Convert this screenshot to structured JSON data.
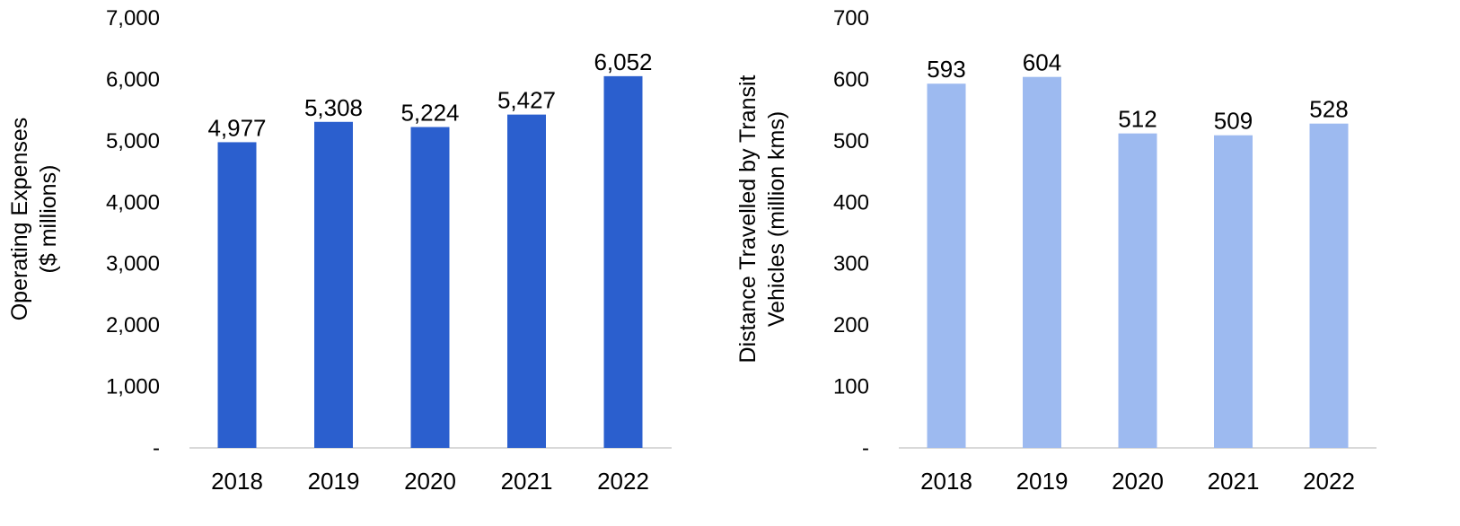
{
  "chart_data": [
    {
      "type": "bar",
      "title": "",
      "xlabel": "",
      "ylabel_lines": [
        "Operating Expenses",
        "($ millions)"
      ],
      "categories": [
        "2018",
        "2019",
        "2020",
        "2021",
        "2022"
      ],
      "values": [
        4977,
        5308,
        5224,
        5427,
        6052
      ],
      "value_labels": [
        "4,977",
        "5,308",
        "5,224",
        "5,427",
        "6,052"
      ],
      "ylim": [
        0,
        7000
      ],
      "yticks": [
        "-",
        "1,000",
        "2,000",
        "3,000",
        "4,000",
        "5,000",
        "6,000",
        "7,000"
      ],
      "bar_color": "#2B5FCE",
      "grid": false,
      "legend": "none"
    },
    {
      "type": "bar",
      "title": "",
      "xlabel": "",
      "ylabel_lines": [
        "Distance Travelled by Transit",
        "Vehicles (million kms)"
      ],
      "categories": [
        "2018",
        "2019",
        "2020",
        "2021",
        "2022"
      ],
      "values": [
        593,
        604,
        512,
        509,
        528
      ],
      "value_labels": [
        "593",
        "604",
        "512",
        "509",
        "528"
      ],
      "ylim": [
        0,
        700
      ],
      "yticks": [
        "-",
        "100",
        "200",
        "300",
        "400",
        "500",
        "600",
        "700"
      ],
      "bar_color": "#9DBAF0",
      "grid": false,
      "legend": "none"
    }
  ]
}
